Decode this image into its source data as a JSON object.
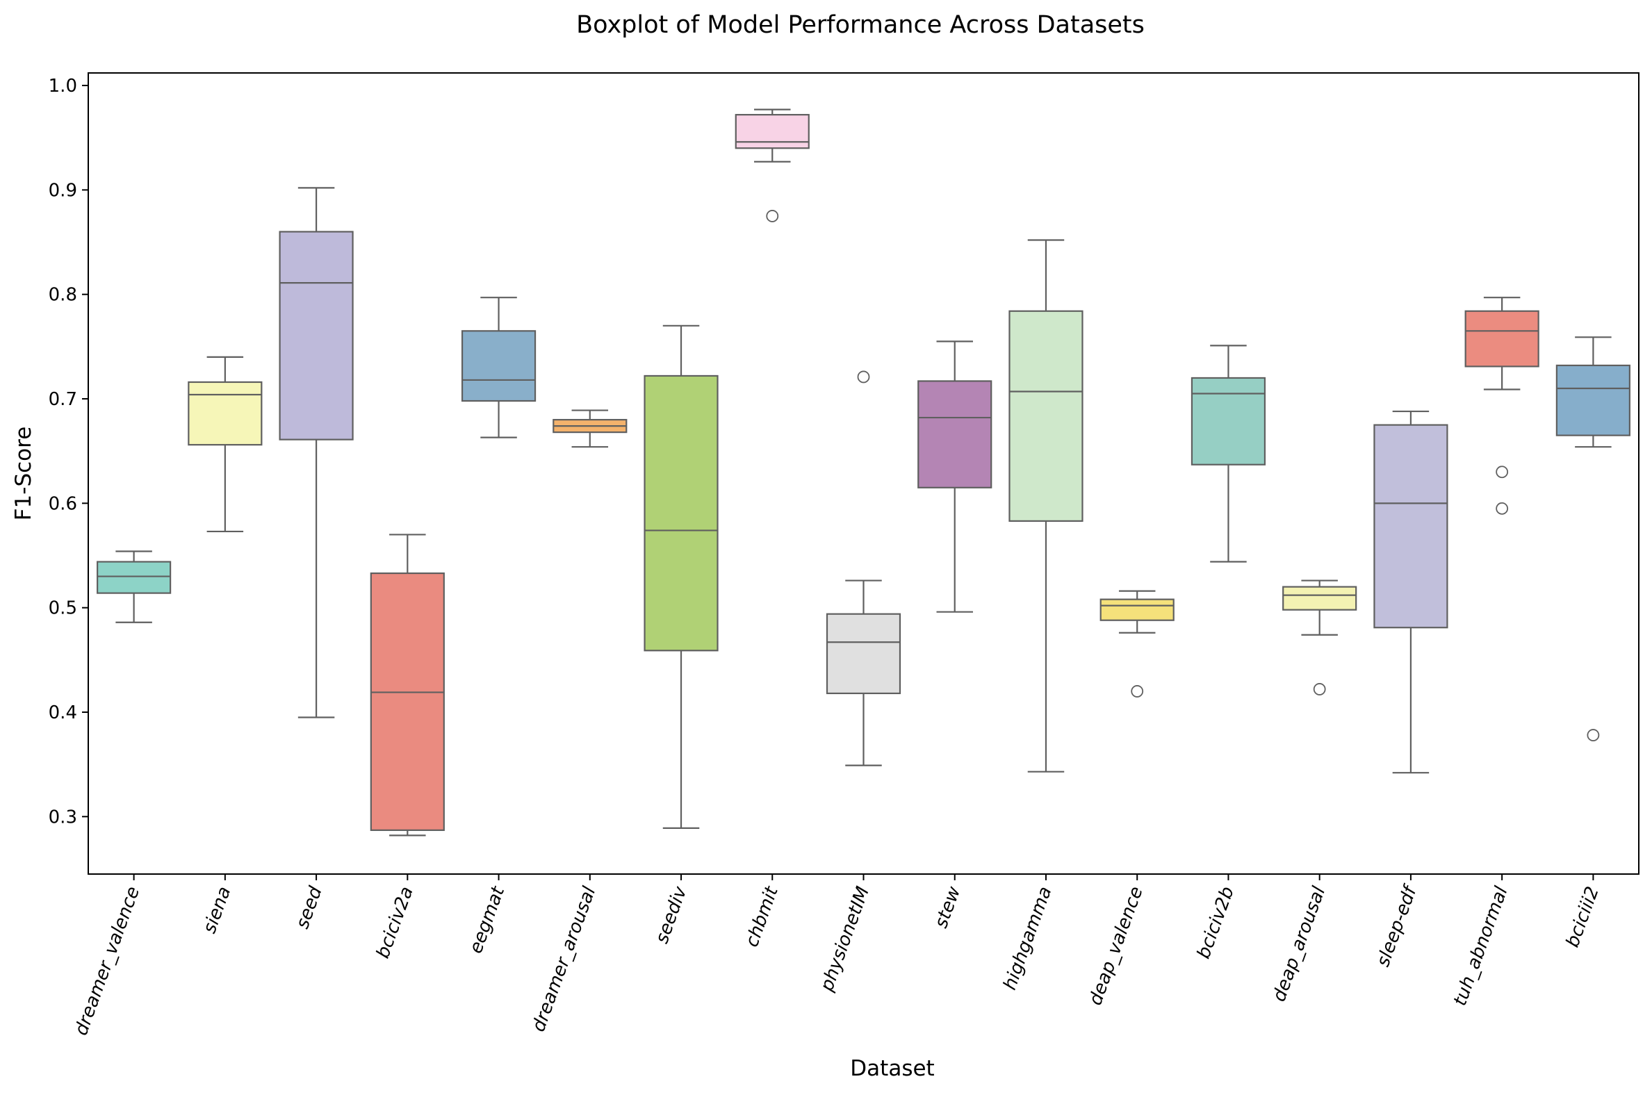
{
  "chart_data": {
    "type": "boxplot",
    "title": "Boxplot of Model Performance Across Datasets",
    "xlabel": "Dataset",
    "ylabel": "F1-Score",
    "ylim": [
      0.245,
      1.012
    ],
    "yticks": [
      0.3,
      0.4,
      0.5,
      0.6,
      0.7,
      0.8,
      0.9,
      1.0
    ],
    "ytick_labels": [
      "0.3",
      "0.4",
      "0.5",
      "0.6",
      "0.7",
      "0.8",
      "0.9",
      "1.0"
    ],
    "grid": false,
    "boxes": [
      {
        "category": "dreamer_valence",
        "color": "#8dd3c7",
        "whisker_low": 0.486,
        "q1": 0.514,
        "median": 0.53,
        "q3": 0.544,
        "whisker_high": 0.554,
        "outliers": []
      },
      {
        "category": "siena",
        "color": "#f6f6b8",
        "whisker_low": 0.573,
        "q1": 0.656,
        "median": 0.704,
        "q3": 0.716,
        "whisker_high": 0.74,
        "outliers": []
      },
      {
        "category": "seed",
        "color": "#bebada",
        "whisker_low": 0.395,
        "q1": 0.661,
        "median": 0.811,
        "q3": 0.86,
        "whisker_high": 0.902,
        "outliers": []
      },
      {
        "category": "bciciv2a",
        "color": "#ea8b80",
        "whisker_low": 0.282,
        "q1": 0.287,
        "median": 0.419,
        "q3": 0.533,
        "whisker_high": 0.57,
        "outliers": []
      },
      {
        "category": "eegmat",
        "color": "#89afca",
        "whisker_low": 0.663,
        "q1": 0.698,
        "median": 0.718,
        "q3": 0.765,
        "whisker_high": 0.797,
        "outliers": []
      },
      {
        "category": "dreamer_arousal",
        "color": "#f4b26c",
        "whisker_low": 0.654,
        "q1": 0.668,
        "median": 0.674,
        "q3": 0.68,
        "whisker_high": 0.689,
        "outliers": []
      },
      {
        "category": "seediv",
        "color": "#b0d175",
        "whisker_low": 0.289,
        "q1": 0.459,
        "median": 0.574,
        "q3": 0.722,
        "whisker_high": 0.77,
        "outliers": []
      },
      {
        "category": "chbmit",
        "color": "#f8d3e6",
        "whisker_low": 0.927,
        "q1": 0.94,
        "median": 0.946,
        "q3": 0.972,
        "whisker_high": 0.977,
        "outliers": [
          0.875
        ]
      },
      {
        "category": "physionetIM",
        "color": "#e0e0e0",
        "whisker_low": 0.349,
        "q1": 0.418,
        "median": 0.467,
        "q3": 0.494,
        "whisker_high": 0.526,
        "outliers": [
          0.721
        ]
      },
      {
        "category": "stew",
        "color": "#b485b4",
        "whisker_low": 0.496,
        "q1": 0.615,
        "median": 0.682,
        "q3": 0.717,
        "whisker_high": 0.755,
        "outliers": []
      },
      {
        "category": "highgamma",
        "color": "#cfe8cb",
        "whisker_low": 0.343,
        "q1": 0.583,
        "median": 0.707,
        "q3": 0.784,
        "whisker_high": 0.852,
        "outliers": []
      },
      {
        "category": "deap_valence",
        "color": "#f5e17b",
        "whisker_low": 0.476,
        "q1": 0.488,
        "median": 0.502,
        "q3": 0.508,
        "whisker_high": 0.516,
        "outliers": [
          0.42
        ]
      },
      {
        "category": "bciciv2b",
        "color": "#96cfc4",
        "whisker_low": 0.544,
        "q1": 0.637,
        "median": 0.705,
        "q3": 0.72,
        "whisker_high": 0.751,
        "outliers": []
      },
      {
        "category": "deap_arousal",
        "color": "#f4f2b3",
        "whisker_low": 0.474,
        "q1": 0.498,
        "median": 0.512,
        "q3": 0.52,
        "whisker_high": 0.526,
        "outliers": [
          0.422
        ]
      },
      {
        "category": "sleep-edf",
        "color": "#c1bfdb",
        "whisker_low": 0.342,
        "q1": 0.481,
        "median": 0.6,
        "q3": 0.675,
        "whisker_high": 0.688,
        "outliers": []
      },
      {
        "category": "tuh_abnormal",
        "color": "#eb8c80",
        "whisker_low": 0.709,
        "q1": 0.731,
        "median": 0.765,
        "q3": 0.784,
        "whisker_high": 0.797,
        "outliers": [
          0.63,
          0.595
        ]
      },
      {
        "category": "bciciii2",
        "color": "#86aecb",
        "whisker_low": 0.654,
        "q1": 0.665,
        "median": 0.71,
        "q3": 0.732,
        "whisker_high": 0.759,
        "outliers": [
          0.378
        ]
      }
    ]
  }
}
